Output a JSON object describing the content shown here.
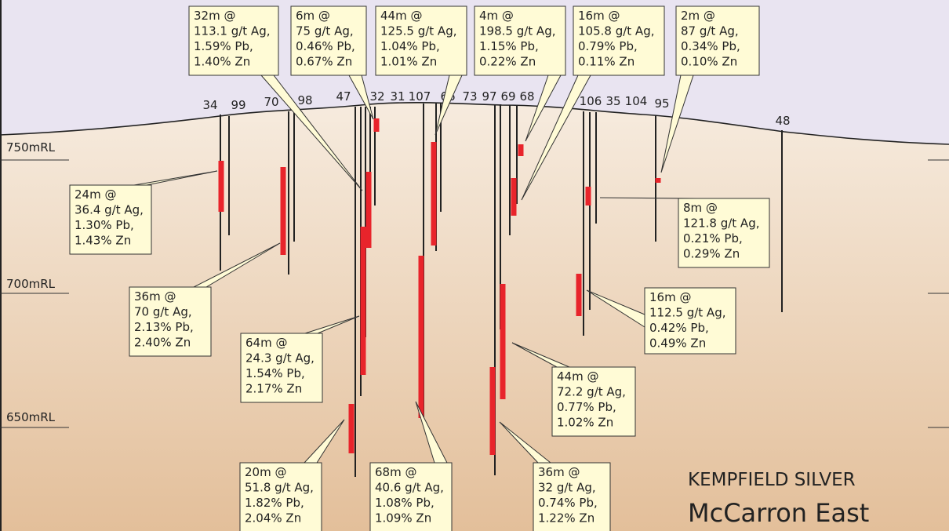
{
  "title": "KEMPFIELD SILVER",
  "subtitle": "McCarron East",
  "rl_labels": [
    "750mRL",
    "700mRL",
    "650mRL"
  ],
  "holes": [
    {
      "label": "34"
    },
    {
      "label": "99"
    },
    {
      "label": "70"
    },
    {
      "label": "98"
    },
    {
      "label": "47"
    },
    {
      "label": "32"
    },
    {
      "label": "31"
    },
    {
      "label": "107"
    },
    {
      "label": "66"
    },
    {
      "label": "73"
    },
    {
      "label": "97"
    },
    {
      "label": "69"
    },
    {
      "label": "68"
    },
    {
      "label": "106"
    },
    {
      "label": "35"
    },
    {
      "label": "104"
    },
    {
      "label": "95"
    },
    {
      "label": "48"
    }
  ],
  "callouts": [
    {
      "lines": [
        "32m @",
        "113.1 g/t Ag,",
        "1.59% Pb,",
        "1.40% Zn"
      ]
    },
    {
      "lines": [
        "6m @",
        "75 g/t Ag,",
        "0.46% Pb,",
        "0.67% Zn"
      ]
    },
    {
      "lines": [
        "44m @",
        "125.5 g/t Ag,",
        "1.04% Pb,",
        "1.01% Zn"
      ]
    },
    {
      "lines": [
        "4m @",
        "198.5 g/t Ag,",
        "1.15% Pb,",
        "0.22% Zn"
      ]
    },
    {
      "lines": [
        "16m @",
        "105.8 g/t Ag,",
        "0.79% Pb,",
        "0.11% Zn"
      ]
    },
    {
      "lines": [
        "2m @",
        "87 g/t Ag,",
        "0.34% Pb,",
        "0.10% Zn"
      ]
    },
    {
      "lines": [
        "24m @",
        "36.4 g/t Ag,",
        "1.30% Pb,",
        "1.43% Zn"
      ]
    },
    {
      "lines": [
        "36m @",
        "70 g/t Ag,",
        "2.13% Pb,",
        "2.40% Zn"
      ]
    },
    {
      "lines": [
        "64m @",
        "24.3 g/t Ag,",
        "1.54% Pb,",
        "2.17% Zn"
      ]
    },
    {
      "lines": [
        "8m @",
        "121.8 g/t Ag,",
        "0.21% Pb,",
        "0.29% Zn"
      ]
    },
    {
      "lines": [
        "16m @",
        "112.5 g/t Ag,",
        "0.42% Pb,",
        "0.49% Zn"
      ]
    },
    {
      "lines": [
        "44m @",
        "72.2 g/t Ag,",
        "0.77% Pb,",
        "1.02% Zn"
      ]
    },
    {
      "lines": [
        "20m @",
        "51.8 g/t Ag,",
        "1.82% Pb,",
        "2.04% Zn"
      ]
    },
    {
      "lines": [
        "68m @",
        "40.6 g/t Ag,",
        "1.08% Pb,",
        "1.09% Zn"
      ]
    },
    {
      "lines": [
        "36m @",
        "32 g/t Ag,",
        "0.74% Pb,",
        "1.22% Zn"
      ]
    }
  ]
}
